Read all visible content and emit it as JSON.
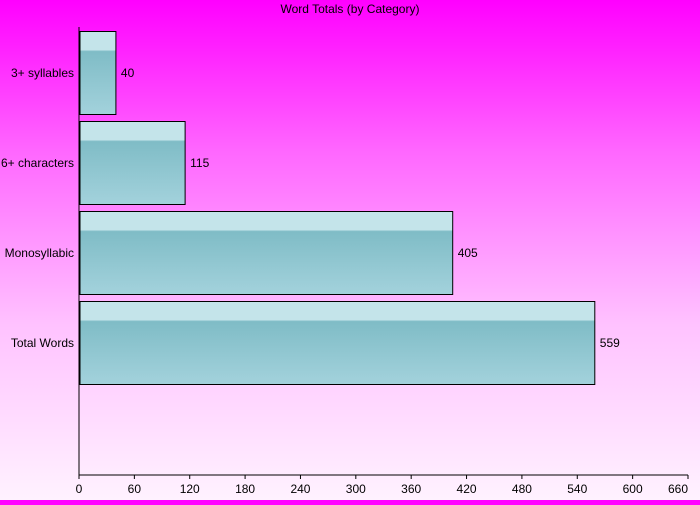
{
  "chart_data": {
    "type": "bar",
    "orientation": "horizontal",
    "title": "Word Totals (by Category)",
    "categories": [
      "3+ syllables",
      "6+ characters",
      "Monosyllabic",
      "Total Words"
    ],
    "values": [
      40,
      115,
      405,
      559
    ],
    "xlim": [
      0,
      660
    ],
    "xticks": [
      "0",
      "60",
      "120",
      "180",
      "240",
      "300",
      "360",
      "420",
      "480",
      "540",
      "600",
      "660"
    ],
    "xlabel": "",
    "ylabel": "",
    "grid": false,
    "legend": "none",
    "colors": {
      "bar_top": "#c4e4ea",
      "bar_mid": "#7fbcc6",
      "bar_bottom": "#a3d2dc",
      "bar_border": "#000000",
      "axis": "#000000"
    }
  }
}
